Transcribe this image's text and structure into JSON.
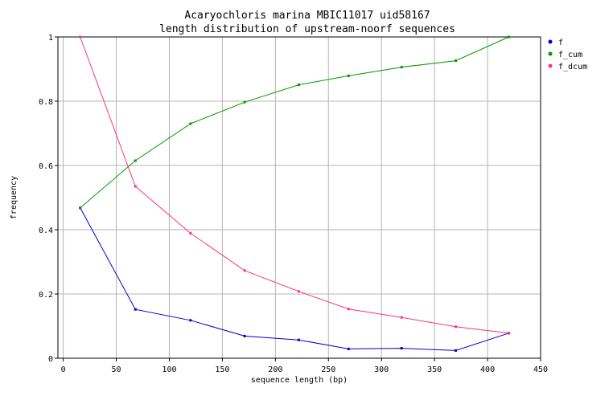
{
  "chart_data": {
    "type": "line",
    "title": "Acaryochloris marina MBIC11017 uid58167",
    "subtitle": "length distribution of upstream-noorf sequences",
    "xlabel": "sequence length (bp)",
    "ylabel": "frequency",
    "xlim": [
      -5,
      450
    ],
    "ylim": [
      0,
      1
    ],
    "xticks": [
      0,
      50,
      100,
      150,
      200,
      250,
      300,
      350,
      400,
      450
    ],
    "yticks": [
      0,
      0.2,
      0.4,
      0.6,
      0.8,
      1
    ],
    "grid": true,
    "legend_position": "top-right",
    "x": [
      16,
      68,
      120,
      171,
      222,
      269,
      319,
      370,
      420
    ],
    "series": [
      {
        "name": "f",
        "color": "#0000cc",
        "values": [
          0.468,
          0.152,
          0.118,
          0.069,
          0.057,
          0.029,
          0.031,
          0.024,
          0.078
        ]
      },
      {
        "name": "f_cum",
        "color": "#009900",
        "values": [
          0.468,
          0.615,
          0.73,
          0.797,
          0.851,
          0.879,
          0.906,
          0.926,
          1.0
        ]
      },
      {
        "name": "f_dcum",
        "color": "#ff3377",
        "values": [
          1.0,
          0.535,
          0.389,
          0.273,
          0.208,
          0.153,
          0.127,
          0.098,
          0.078
        ]
      }
    ]
  }
}
